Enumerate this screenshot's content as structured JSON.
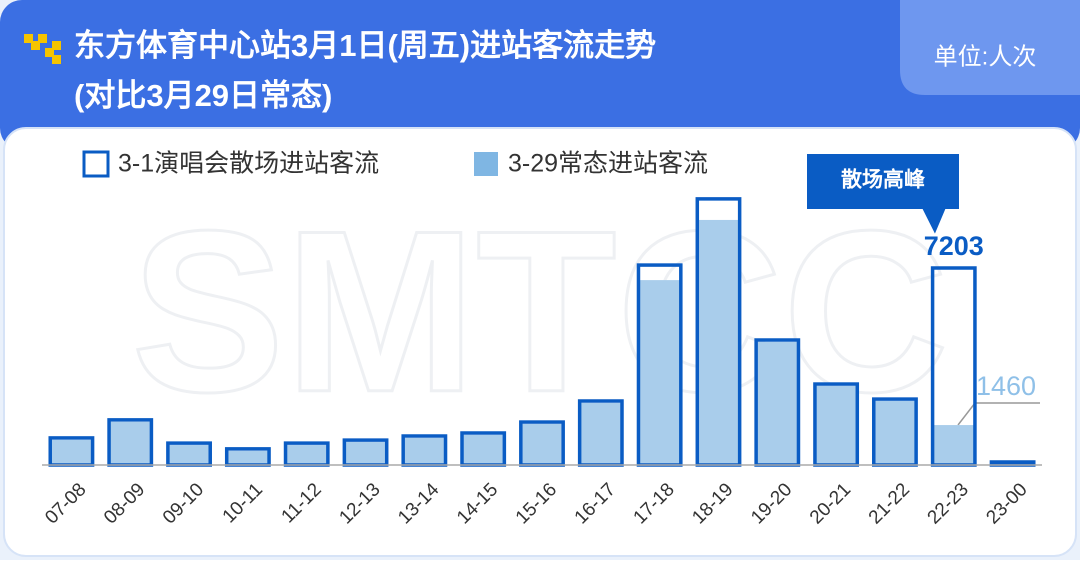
{
  "chart_data": {
    "type": "bar",
    "title": "东方体育中心站3月1日(周五)进站客流走势",
    "subtitle": "(对比3月29日常态)",
    "unit": "单位:人次",
    "watermark": "SMTCC",
    "annotation": "散场高峰",
    "categories": [
      "07-08",
      "08-09",
      "09-10",
      "10-11",
      "11-12",
      "12-13",
      "13-14",
      "14-15",
      "15-16",
      "16-17",
      "17-18",
      "18-19",
      "19-20",
      "20-21",
      "21-22",
      "22-23",
      "23-00"
    ],
    "series": [
      {
        "name": "3-1演唱会散场进站客流",
        "color": "#0a5cc4",
        "values": [
          990,
          1650,
          800,
          590,
          800,
          910,
          1060,
          1170,
          1570,
          2340,
          7310,
          9730,
          4570,
          2960,
          2410,
          7203,
          110
        ]
      },
      {
        "name": "3-29常态进站客流",
        "color": "#a9cdeb",
        "values": [
          920,
          1580,
          730,
          520,
          730,
          840,
          990,
          1100,
          1500,
          2270,
          6760,
          8960,
          4500,
          2890,
          2340,
          1460,
          60
        ]
      }
    ],
    "ylim": [
      0,
      10000
    ]
  }
}
